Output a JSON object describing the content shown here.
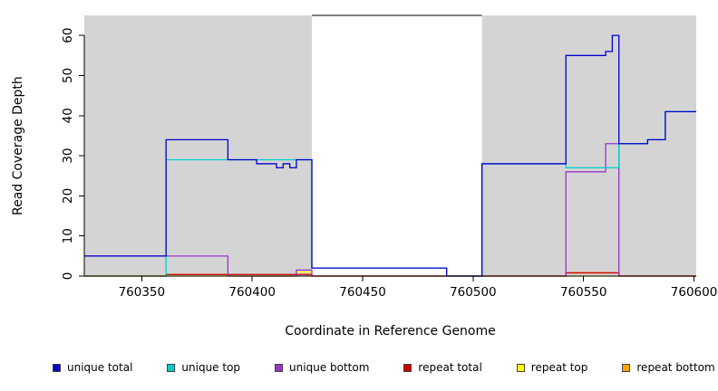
{
  "chart_data": {
    "type": "line",
    "subtype": "step",
    "title": "",
    "xlabel": "Coordinate in Reference Genome",
    "ylabel": "Read Coverage Depth",
    "xlim": [
      760324,
      760601
    ],
    "ylim": [
      0,
      65
    ],
    "x_ticks": [
      760350,
      760400,
      760450,
      760500,
      760550,
      760600
    ],
    "y_ticks": [
      0,
      10,
      20,
      30,
      40,
      50,
      60
    ],
    "grid": false,
    "legend_position": "bottom",
    "shaded_regions": [
      {
        "x0": 760324,
        "x1": 760427,
        "color": "#d4d4d4"
      },
      {
        "x0": 760504,
        "x1": 760601,
        "color": "#d4d4d4"
      }
    ],
    "series": [
      {
        "name": "unique total",
        "color": "#0000cc",
        "points": [
          [
            760324,
            5
          ],
          [
            760361,
            34
          ],
          [
            760389,
            29
          ],
          [
            760402,
            28
          ],
          [
            760411,
            27
          ],
          [
            760414,
            28
          ],
          [
            760417,
            27
          ],
          [
            760420,
            29
          ],
          [
            760427,
            2
          ],
          [
            760488,
            0
          ],
          [
            760504,
            28
          ],
          [
            760542,
            55
          ],
          [
            760560,
            56
          ],
          [
            760563,
            60
          ],
          [
            760566,
            33
          ],
          [
            760579,
            34
          ],
          [
            760587,
            41
          ]
        ]
      },
      {
        "name": "unique top",
        "color": "#00cdcd",
        "points": [
          [
            760324,
            0
          ],
          [
            760361,
            29
          ],
          [
            760427,
            2
          ],
          [
            760488,
            0
          ],
          [
            760504,
            28
          ],
          [
            760542,
            27
          ],
          [
            760566,
            33
          ],
          [
            760579,
            34
          ],
          [
            760587,
            41
          ]
        ]
      },
      {
        "name": "unique bottom",
        "color": "#9933cc",
        "points": [
          [
            760324,
            5
          ],
          [
            760389,
            0
          ],
          [
            760420,
            1.5
          ],
          [
            760427,
            0
          ],
          [
            760542,
            26
          ],
          [
            760560,
            33
          ],
          [
            760566,
            0
          ]
        ]
      },
      {
        "name": "repeat total",
        "color": "#cc0000",
        "points": [
          [
            760324,
            0
          ],
          [
            760361,
            0.4
          ],
          [
            760427,
            0
          ],
          [
            760542,
            0.8
          ],
          [
            760566,
            0
          ]
        ]
      },
      {
        "name": "repeat top",
        "color": "#ffff00",
        "points": [
          [
            760324,
            0
          ],
          [
            760420,
            1
          ],
          [
            760427,
            0
          ]
        ]
      },
      {
        "name": "repeat bottom",
        "color": "#ffa500",
        "points": [
          [
            760324,
            0
          ],
          [
            760361,
            0.4
          ],
          [
            760389,
            0
          ],
          [
            760542,
            0.8
          ],
          [
            760566,
            0
          ]
        ]
      }
    ]
  }
}
